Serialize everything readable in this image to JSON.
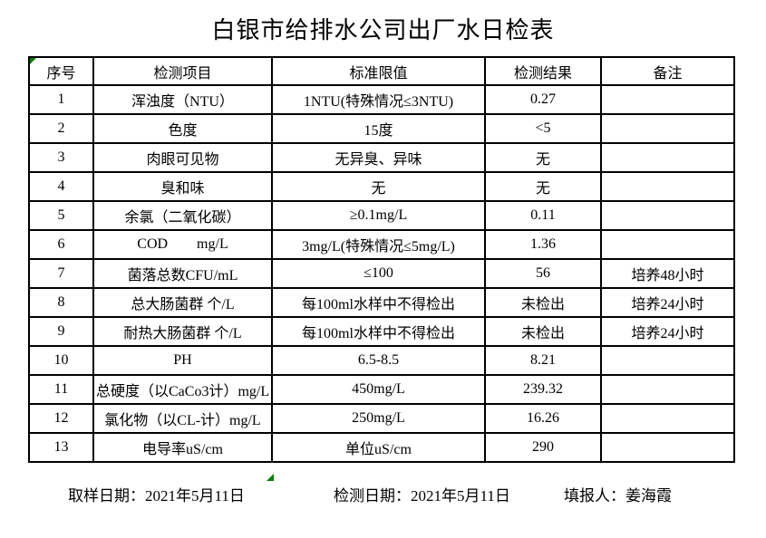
{
  "title": "白银市给排水公司出厂水日检表",
  "table": {
    "headers": [
      "序号",
      "检测项目",
      "标准限值",
      "检测结果",
      "备注"
    ],
    "rows": [
      {
        "no": "1",
        "item": "浑浊度（NTU）",
        "limit": "1NTU(特殊情况≤3NTU)",
        "result": "0.27",
        "note": ""
      },
      {
        "no": "2",
        "item": "色度",
        "limit": "15度",
        "result": "<5",
        "note": ""
      },
      {
        "no": "3",
        "item": "肉眼可见物",
        "limit": "无异臭、异味",
        "result": "无",
        "note": ""
      },
      {
        "no": "4",
        "item": "臭和味",
        "limit": "无",
        "result": "无",
        "note": ""
      },
      {
        "no": "5",
        "item": "余氯（二氧化碳）",
        "limit": "≥0.1mg/L",
        "result": "0.11",
        "note": ""
      },
      {
        "no": "6",
        "item": "COD        mg/L",
        "limit": "3mg/L(特殊情况≤5mg/L)",
        "result": "1.36",
        "note": ""
      },
      {
        "no": "7",
        "item": "菌落总数CFU/mL",
        "limit": "≤100",
        "result": "56",
        "note": "培养48小时"
      },
      {
        "no": "8",
        "item": "总大肠菌群 个/L",
        "limit": "每100ml水样中不得检出",
        "result": "未检出",
        "note": "培养24小时"
      },
      {
        "no": "9",
        "item": "耐热大肠菌群 个/L",
        "limit": "每100ml水样中不得检出",
        "result": "未检出",
        "note": "培养24小时"
      },
      {
        "no": "10",
        "item": "PH",
        "limit": "6.5-8.5",
        "result": "8.21",
        "note": ""
      },
      {
        "no": "11",
        "item": "总硬度（以CaCo3计）mg/L",
        "limit": "450mg/L",
        "result": "239.32",
        "note": ""
      },
      {
        "no": "12",
        "item": "氯化物（以CL-计）mg/L",
        "limit": "250mg/L",
        "result": "16.26",
        "note": ""
      },
      {
        "no": "13",
        "item": "电导率uS/cm",
        "limit": "单位uS/cm",
        "result": "290",
        "note": ""
      }
    ]
  },
  "footer": {
    "sampling_date": "取样日期：2021年5月11日",
    "test_date": "检测日期：2021年5月11日",
    "reporter": "填报人：姜海霞"
  },
  "colors": {
    "border": "#000000",
    "marker_green": "#008000",
    "background": "#ffffff"
  }
}
